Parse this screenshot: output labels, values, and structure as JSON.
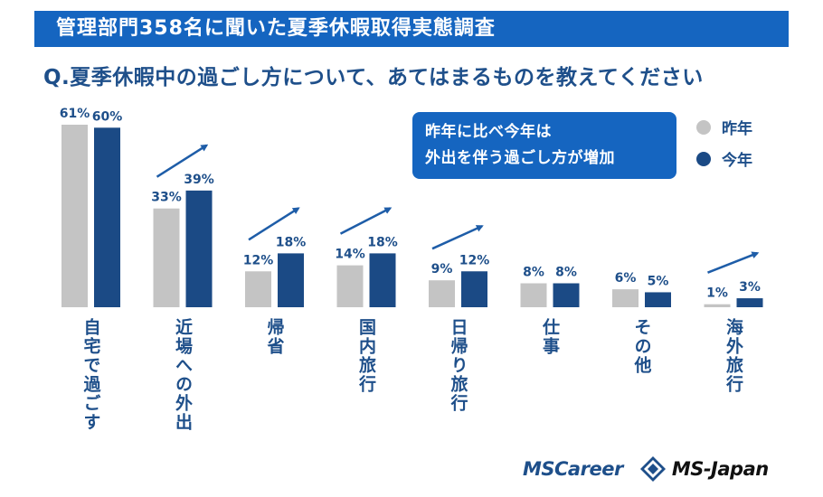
{
  "header": {
    "title": "管理部門358名に聞いた夏季休暇取得実態調査",
    "question": "Q.夏季休暇中の過ごし方について、あてはまるものを教えてください"
  },
  "callout": {
    "line1": "昨年に比べ今年は",
    "line2": "外出を伴う過ごし方が増加"
  },
  "legend": {
    "last_year": "昨年",
    "this_year": "今年"
  },
  "colors": {
    "last_year": "#c4c4c4",
    "this_year": "#1b4a85",
    "accent": "#1565c0",
    "arrow": "#1e5da8"
  },
  "chart_data": {
    "type": "bar",
    "categories": [
      "自宅で過ごす",
      "近場への外出",
      "帰省",
      "国内旅行",
      "日帰り旅行",
      "仕事",
      "その他",
      "海外旅行"
    ],
    "series": [
      {
        "name": "昨年",
        "values": [
          61,
          33,
          12,
          14,
          9,
          8,
          6,
          1
        ]
      },
      {
        "name": "今年",
        "values": [
          60,
          39,
          18,
          18,
          12,
          8,
          5,
          3
        ]
      }
    ],
    "value_labels_last_year": [
      "61%",
      "33%",
      "12%",
      "14%",
      "9%",
      "8%",
      "6%",
      "1%"
    ],
    "value_labels_this_year": [
      "60%",
      "39%",
      "18%",
      "18%",
      "12%",
      "8%",
      "5%",
      "3%"
    ],
    "increase_arrows": [
      false,
      true,
      true,
      true,
      true,
      false,
      false,
      true
    ],
    "ylim": [
      0,
      61
    ],
    "grid": false,
    "legend_position": "top-right"
  },
  "logos": {
    "mscareer": "MSCareer",
    "msjapan": "MS-Japan"
  }
}
